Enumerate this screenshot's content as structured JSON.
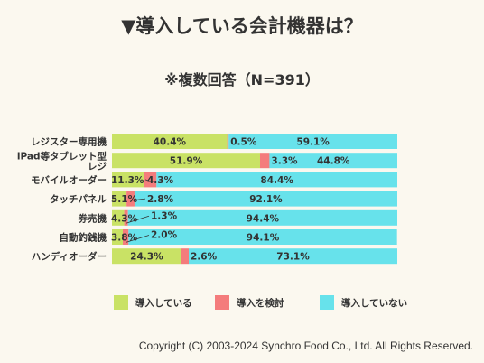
{
  "chart_data": {
    "type": "bar",
    "stacked": true,
    "orientation": "horizontal",
    "title": "▼導入している会計機器は？",
    "subtitle": "※複数回答（N=391）",
    "categories": [
      "レジスター専用機",
      "iPad等タブレット型レジ",
      "モバイルオーダー",
      "タッチパネル",
      "券売機",
      "自動釣銭機",
      "ハンディオーダー"
    ],
    "category_lines": [
      [
        "レジスター専用機"
      ],
      [
        "iPad等タブレット型",
        "レジ"
      ],
      [
        "モバイルオーダー"
      ],
      [
        "タッチパネル"
      ],
      [
        "券売機"
      ],
      [
        "自動釣銭機"
      ],
      [
        "ハンディオーダー"
      ]
    ],
    "series": [
      {
        "name": "導入している",
        "color": "#c9e265",
        "values": [
          40.4,
          51.9,
          11.3,
          5.1,
          4.3,
          3.8,
          24.3
        ]
      },
      {
        "name": "導入を検討",
        "color": "#f47c7c",
        "values": [
          0.5,
          3.3,
          4.3,
          2.8,
          1.3,
          2.0,
          2.6
        ]
      },
      {
        "name": "導入していない",
        "color": "#67e2eb",
        "values": [
          59.1,
          44.8,
          84.4,
          92.1,
          94.4,
          94.1,
          73.1
        ]
      }
    ],
    "unit": "%",
    "xlim": [
      0,
      100
    ],
    "legend": "bottom",
    "grid": false
  },
  "footer": "Copyright (C) 2003-2024  Synchro Food Co., Ltd. All Rights Reserved."
}
